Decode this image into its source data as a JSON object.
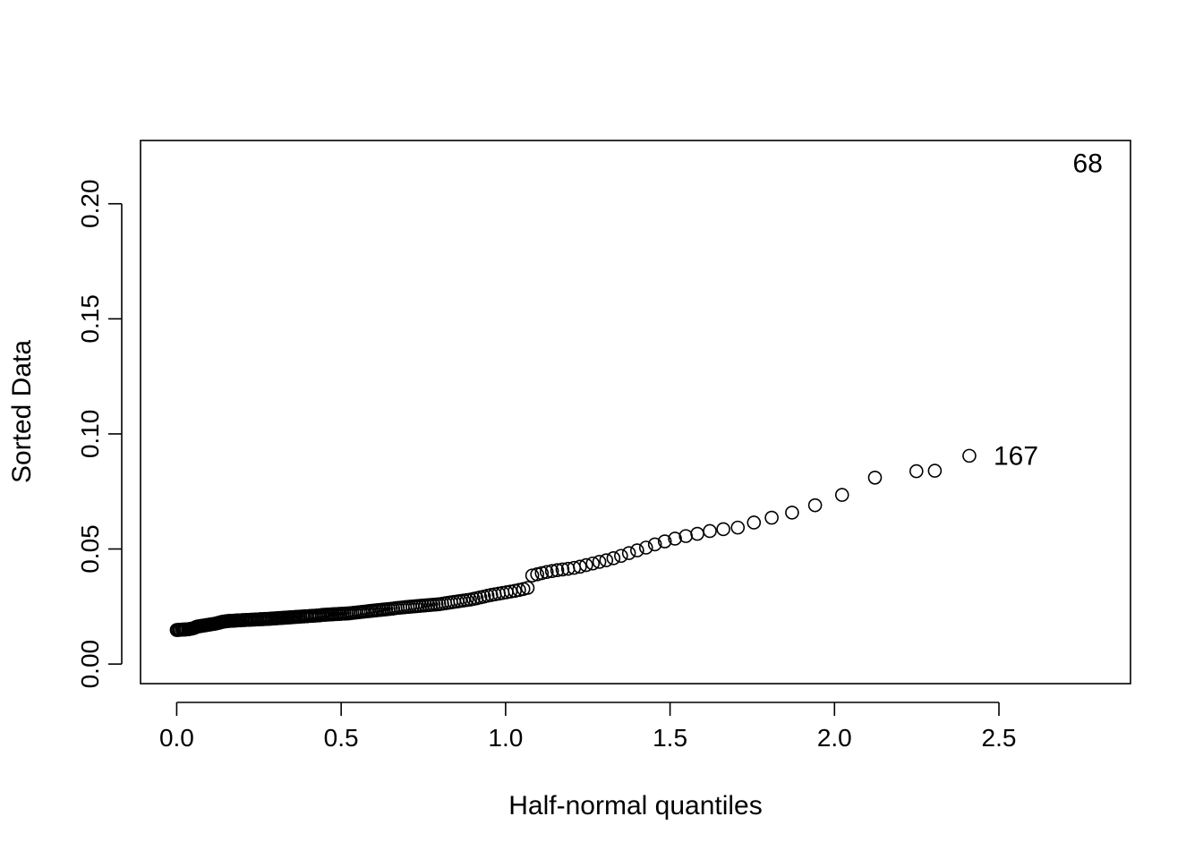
{
  "chart_data": {
    "type": "scatter",
    "title": "",
    "xlabel": "Half-normal quantiles",
    "ylabel": "Sorted Data",
    "xlim": [
      -0.11,
      2.9
    ],
    "ylim": [
      -0.0085,
      0.2275
    ],
    "x_ticks": [
      0.0,
      0.5,
      1.0,
      1.5,
      2.0,
      2.5
    ],
    "x_tick_labels": [
      "0.0",
      "0.5",
      "1.0",
      "1.5",
      "2.0",
      "2.5"
    ],
    "y_ticks": [
      0.0,
      0.05,
      0.1,
      0.15,
      0.2
    ],
    "y_tick_labels": [
      "0.00",
      "0.05",
      "0.10",
      "0.15",
      "0.20"
    ],
    "grid": false,
    "marker": "open-circle",
    "point_labels": [
      {
        "text": "167",
        "x": 2.41,
        "y": 0.0905
      },
      {
        "text": "68",
        "x": 2.77,
        "y": 0.2175
      }
    ],
    "points": [
      [
        0.0,
        0.0148
      ],
      [
        0.004,
        0.0148
      ],
      [
        0.008,
        0.0149
      ],
      [
        0.012,
        0.0149
      ],
      [
        0.017,
        0.015
      ],
      [
        0.021,
        0.015
      ],
      [
        0.025,
        0.015
      ],
      [
        0.029,
        0.0151
      ],
      [
        0.034,
        0.0151
      ],
      [
        0.038,
        0.0152
      ],
      [
        0.042,
        0.0153
      ],
      [
        0.046,
        0.0154
      ],
      [
        0.051,
        0.0156
      ],
      [
        0.055,
        0.0158
      ],
      [
        0.059,
        0.0161
      ],
      [
        0.063,
        0.0163
      ],
      [
        0.068,
        0.0164
      ],
      [
        0.072,
        0.0165
      ],
      [
        0.076,
        0.0166
      ],
      [
        0.08,
        0.0167
      ],
      [
        0.085,
        0.0168
      ],
      [
        0.089,
        0.0169
      ],
      [
        0.093,
        0.017
      ],
      [
        0.098,
        0.0171
      ],
      [
        0.102,
        0.0172
      ],
      [
        0.106,
        0.0173
      ],
      [
        0.111,
        0.0174
      ],
      [
        0.115,
        0.0175
      ],
      [
        0.119,
        0.0176
      ],
      [
        0.124,
        0.0178
      ],
      [
        0.128,
        0.0179
      ],
      [
        0.132,
        0.0181
      ],
      [
        0.137,
        0.0183
      ],
      [
        0.141,
        0.0184
      ],
      [
        0.145,
        0.0185
      ],
      [
        0.15,
        0.0186
      ],
      [
        0.154,
        0.0187
      ],
      [
        0.159,
        0.0187
      ],
      [
        0.163,
        0.0188
      ],
      [
        0.167,
        0.0188
      ],
      [
        0.172,
        0.0188
      ],
      [
        0.176,
        0.0189
      ],
      [
        0.181,
        0.0189
      ],
      [
        0.185,
        0.019
      ],
      [
        0.19,
        0.019
      ],
      [
        0.194,
        0.019
      ],
      [
        0.199,
        0.0191
      ],
      [
        0.203,
        0.0191
      ],
      [
        0.208,
        0.0191
      ],
      [
        0.212,
        0.0192
      ],
      [
        0.217,
        0.0192
      ],
      [
        0.222,
        0.0192
      ],
      [
        0.226,
        0.0193
      ],
      [
        0.231,
        0.0193
      ],
      [
        0.236,
        0.0193
      ],
      [
        0.24,
        0.0194
      ],
      [
        0.245,
        0.0194
      ],
      [
        0.25,
        0.0194
      ],
      [
        0.254,
        0.0195
      ],
      [
        0.259,
        0.0195
      ],
      [
        0.264,
        0.0195
      ],
      [
        0.268,
        0.0196
      ],
      [
        0.273,
        0.0196
      ],
      [
        0.278,
        0.0196
      ],
      [
        0.283,
        0.0197
      ],
      [
        0.288,
        0.0197
      ],
      [
        0.292,
        0.0198
      ],
      [
        0.297,
        0.0198
      ],
      [
        0.302,
        0.0199
      ],
      [
        0.307,
        0.0199
      ],
      [
        0.312,
        0.02
      ],
      [
        0.317,
        0.02
      ],
      [
        0.322,
        0.0201
      ],
      [
        0.327,
        0.0201
      ],
      [
        0.332,
        0.0202
      ],
      [
        0.337,
        0.0202
      ],
      [
        0.342,
        0.0203
      ],
      [
        0.347,
        0.0203
      ],
      [
        0.352,
        0.0204
      ],
      [
        0.357,
        0.0204
      ],
      [
        0.362,
        0.0205
      ],
      [
        0.367,
        0.0205
      ],
      [
        0.372,
        0.0206
      ],
      [
        0.377,
        0.0206
      ],
      [
        0.383,
        0.0207
      ],
      [
        0.388,
        0.0207
      ],
      [
        0.393,
        0.0208
      ],
      [
        0.398,
        0.0208
      ],
      [
        0.404,
        0.0209
      ],
      [
        0.409,
        0.0209
      ],
      [
        0.414,
        0.021
      ],
      [
        0.42,
        0.021
      ],
      [
        0.425,
        0.0211
      ],
      [
        0.431,
        0.0211
      ],
      [
        0.436,
        0.0212
      ],
      [
        0.442,
        0.0213
      ],
      [
        0.447,
        0.0214
      ],
      [
        0.453,
        0.0214
      ],
      [
        0.458,
        0.0215
      ],
      [
        0.464,
        0.0215
      ],
      [
        0.47,
        0.0216
      ],
      [
        0.475,
        0.0216
      ],
      [
        0.481,
        0.0217
      ],
      [
        0.487,
        0.0217
      ],
      [
        0.493,
        0.0218
      ],
      [
        0.498,
        0.0218
      ],
      [
        0.504,
        0.0219
      ],
      [
        0.51,
        0.0219
      ],
      [
        0.516,
        0.022
      ],
      [
        0.522,
        0.022
      ],
      [
        0.528,
        0.0221
      ],
      [
        0.534,
        0.0222
      ],
      [
        0.54,
        0.0223
      ],
      [
        0.546,
        0.0224
      ],
      [
        0.553,
        0.0225
      ],
      [
        0.559,
        0.0226
      ],
      [
        0.565,
        0.0227
      ],
      [
        0.571,
        0.0228
      ],
      [
        0.578,
        0.0229
      ],
      [
        0.584,
        0.023
      ],
      [
        0.591,
        0.0231
      ],
      [
        0.597,
        0.0232
      ],
      [
        0.604,
        0.0233
      ],
      [
        0.61,
        0.0234
      ],
      [
        0.617,
        0.0235
      ],
      [
        0.624,
        0.0236
      ],
      [
        0.63,
        0.0237
      ],
      [
        0.637,
        0.0238
      ],
      [
        0.644,
        0.0239
      ],
      [
        0.651,
        0.024
      ],
      [
        0.658,
        0.0241
      ],
      [
        0.665,
        0.0243
      ],
      [
        0.672,
        0.0244
      ],
      [
        0.68,
        0.0245
      ],
      [
        0.687,
        0.0246
      ],
      [
        0.694,
        0.0247
      ],
      [
        0.702,
        0.0248
      ],
      [
        0.709,
        0.0249
      ],
      [
        0.717,
        0.025
      ],
      [
        0.725,
        0.0251
      ],
      [
        0.732,
        0.0252
      ],
      [
        0.74,
        0.0253
      ],
      [
        0.748,
        0.0254
      ],
      [
        0.756,
        0.0255
      ],
      [
        0.765,
        0.0256
      ],
      [
        0.773,
        0.0257
      ],
      [
        0.781,
        0.0258
      ],
      [
        0.79,
        0.0259
      ],
      [
        0.798,
        0.026
      ],
      [
        0.807,
        0.0262
      ],
      [
        0.816,
        0.0264
      ],
      [
        0.825,
        0.0266
      ],
      [
        0.834,
        0.0268
      ],
      [
        0.843,
        0.027
      ],
      [
        0.853,
        0.0272
      ],
      [
        0.862,
        0.0274
      ],
      [
        0.872,
        0.0276
      ],
      [
        0.882,
        0.0278
      ],
      [
        0.892,
        0.028
      ],
      [
        0.902,
        0.0283
      ],
      [
        0.912,
        0.0286
      ],
      [
        0.923,
        0.029
      ],
      [
        0.934,
        0.0293
      ],
      [
        0.945,
        0.0297
      ],
      [
        0.956,
        0.03
      ],
      [
        0.967,
        0.0303
      ],
      [
        0.979,
        0.0306
      ],
      [
        0.991,
        0.0309
      ],
      [
        1.003,
        0.0312
      ],
      [
        1.015,
        0.0315
      ],
      [
        1.028,
        0.0318
      ],
      [
        1.041,
        0.0322
      ],
      [
        1.054,
        0.0326
      ],
      [
        1.067,
        0.0331
      ],
      [
        1.081,
        0.0385
      ],
      [
        1.096,
        0.039
      ],
      [
        1.11,
        0.0395
      ],
      [
        1.125,
        0.04
      ],
      [
        1.141,
        0.0404
      ],
      [
        1.157,
        0.0408
      ],
      [
        1.173,
        0.0411
      ],
      [
        1.19,
        0.0414
      ],
      [
        1.208,
        0.0418
      ],
      [
        1.226,
        0.0423
      ],
      [
        1.245,
        0.043
      ],
      [
        1.265,
        0.0437
      ],
      [
        1.285,
        0.0444
      ],
      [
        1.306,
        0.0451
      ],
      [
        1.328,
        0.046
      ],
      [
        1.351,
        0.047
      ],
      [
        1.375,
        0.0482
      ],
      [
        1.4,
        0.0494
      ],
      [
        1.427,
        0.0506
      ],
      [
        1.454,
        0.052
      ],
      [
        1.484,
        0.0533
      ],
      [
        1.515,
        0.0545
      ],
      [
        1.548,
        0.0556
      ],
      [
        1.583,
        0.0566
      ],
      [
        1.621,
        0.0578
      ],
      [
        1.662,
        0.0586
      ],
      [
        1.706,
        0.0593
      ],
      [
        1.755,
        0.0615
      ],
      [
        1.809,
        0.0636
      ],
      [
        1.871,
        0.0658
      ],
      [
        1.941,
        0.069
      ],
      [
        2.023,
        0.0735
      ],
      [
        2.123,
        0.081
      ],
      [
        2.249,
        0.0838
      ],
      [
        2.305,
        0.084
      ],
      [
        2.41,
        0.0905
      ]
    ]
  }
}
